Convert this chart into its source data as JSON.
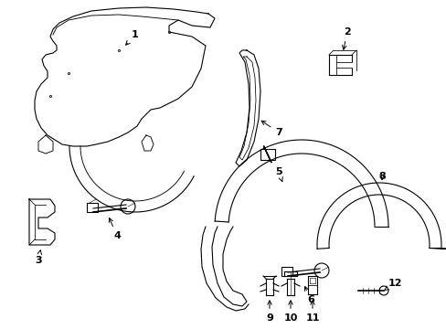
{
  "background_color": "#ffffff",
  "line_color": "#000000",
  "label_color": "#000000",
  "figsize": [
    4.89,
    3.6
  ],
  "dpi": 100
}
